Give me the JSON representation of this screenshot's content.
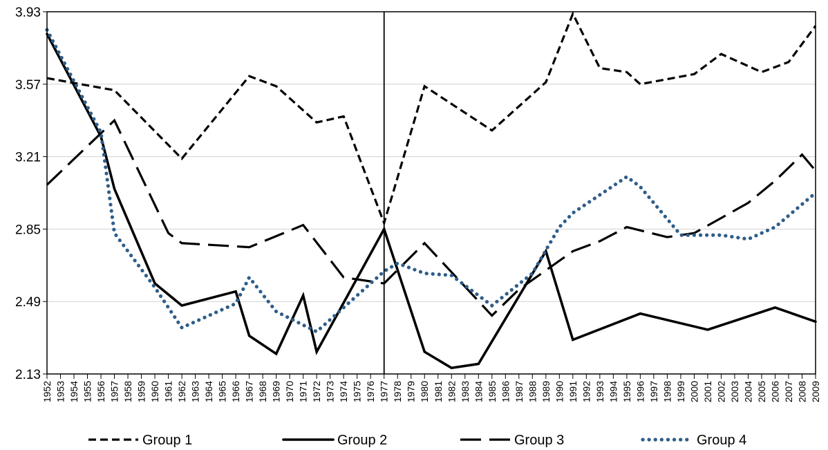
{
  "chart_data": {
    "type": "line",
    "title": "",
    "xlabel": "",
    "ylabel": "",
    "ylim": [
      2.13,
      3.93
    ],
    "yticks": [
      "2.13",
      "2.49",
      "2.85",
      "3.21",
      "3.57",
      "3.93"
    ],
    "categories": [
      "1952",
      "1953",
      "1954",
      "1955",
      "1956",
      "1957",
      "1958",
      "1959",
      "1960",
      "1961",
      "1962",
      "1963",
      "1964",
      "1965",
      "1966",
      "1967",
      "1968",
      "1969",
      "1970",
      "1971",
      "1972",
      "1973",
      "1974",
      "1975",
      "1976",
      "1977",
      "1978",
      "1979",
      "1980",
      "1981",
      "1982",
      "1983",
      "1984",
      "1985",
      "1986",
      "1987",
      "1988",
      "1989",
      "1990",
      "1991",
      "1992",
      "1993",
      "1994",
      "1995",
      "1996",
      "1997",
      "1998",
      "1999",
      "2000",
      "2001",
      "2002",
      "2003",
      "2004",
      "2005",
      "2006",
      "2007",
      "2008",
      "2009"
    ],
    "grid": "horizontal",
    "vertical_reference_line": "1977",
    "legend_position": "bottom",
    "series": [
      {
        "name": "Group 1",
        "style": "short-dash",
        "color": "#000000",
        "points": [
          [
            "1952",
            3.6
          ],
          [
            "1957",
            3.54
          ],
          [
            "1962",
            3.2
          ],
          [
            "1967",
            3.61
          ],
          [
            "1969",
            3.56
          ],
          [
            "1972",
            3.38
          ],
          [
            "1974",
            3.41
          ],
          [
            "1977",
            2.88
          ],
          [
            "1980",
            3.56
          ],
          [
            "1985",
            3.34
          ],
          [
            "1989",
            3.58
          ],
          [
            "1991",
            3.92
          ],
          [
            "1993",
            3.65
          ],
          [
            "1995",
            3.63
          ],
          [
            "1996",
            3.57
          ],
          [
            "2000",
            3.62
          ],
          [
            "2002",
            3.72
          ],
          [
            "2005",
            3.63
          ],
          [
            "2007",
            3.68
          ],
          [
            "2009",
            3.86
          ]
        ]
      },
      {
        "name": "Group 2",
        "style": "solid",
        "color": "#000000",
        "points": [
          [
            "1952",
            3.82
          ],
          [
            "1956",
            3.31
          ],
          [
            "1957",
            3.05
          ],
          [
            "1960",
            2.58
          ],
          [
            "1962",
            2.47
          ],
          [
            "1966",
            2.54
          ],
          [
            "1967",
            2.32
          ],
          [
            "1969",
            2.23
          ],
          [
            "1971",
            2.52
          ],
          [
            "1972",
            2.24
          ],
          [
            "1977",
            2.85
          ],
          [
            "1980",
            2.24
          ],
          [
            "1982",
            2.16
          ],
          [
            "1984",
            2.18
          ],
          [
            "1989",
            2.74
          ],
          [
            "1991",
            2.3
          ],
          [
            "1996",
            2.43
          ],
          [
            "2001",
            2.35
          ],
          [
            "2006",
            2.46
          ],
          [
            "2009",
            2.39
          ]
        ]
      },
      {
        "name": "Group 3",
        "style": "long-dash",
        "color": "#000000",
        "points": [
          [
            "1952",
            3.07
          ],
          [
            "1957",
            3.39
          ],
          [
            "1961",
            2.83
          ],
          [
            "1962",
            2.78
          ],
          [
            "1967",
            2.76
          ],
          [
            "1971",
            2.87
          ],
          [
            "1974",
            2.61
          ],
          [
            "1977",
            2.58
          ],
          [
            "1980",
            2.78
          ],
          [
            "1985",
            2.42
          ],
          [
            "1987",
            2.55
          ],
          [
            "1991",
            2.74
          ],
          [
            "1993",
            2.79
          ],
          [
            "1995",
            2.86
          ],
          [
            "1998",
            2.81
          ],
          [
            "2000",
            2.83
          ],
          [
            "2004",
            2.98
          ],
          [
            "2006",
            3.09
          ],
          [
            "2008",
            3.22
          ],
          [
            "2009",
            3.14
          ]
        ]
      },
      {
        "name": "Group 4",
        "style": "dotted",
        "color": "#2e5d8a",
        "points": [
          [
            "1952",
            3.84
          ],
          [
            "1956",
            3.33
          ],
          [
            "1957",
            2.83
          ],
          [
            "1960",
            2.56
          ],
          [
            "1962",
            2.36
          ],
          [
            "1966",
            2.48
          ],
          [
            "1967",
            2.61
          ],
          [
            "1969",
            2.44
          ],
          [
            "1972",
            2.34
          ],
          [
            "1977",
            2.64
          ],
          [
            "1978",
            2.68
          ],
          [
            "1980",
            2.63
          ],
          [
            "1982",
            2.62
          ],
          [
            "1985",
            2.47
          ],
          [
            "1988",
            2.63
          ],
          [
            "1990",
            2.86
          ],
          [
            "1991",
            2.93
          ],
          [
            "1995",
            3.11
          ],
          [
            "1996",
            3.06
          ],
          [
            "1999",
            2.82
          ],
          [
            "2002",
            2.82
          ],
          [
            "2004",
            2.8
          ],
          [
            "2006",
            2.86
          ],
          [
            "2009",
            3.03
          ]
        ]
      }
    ]
  }
}
